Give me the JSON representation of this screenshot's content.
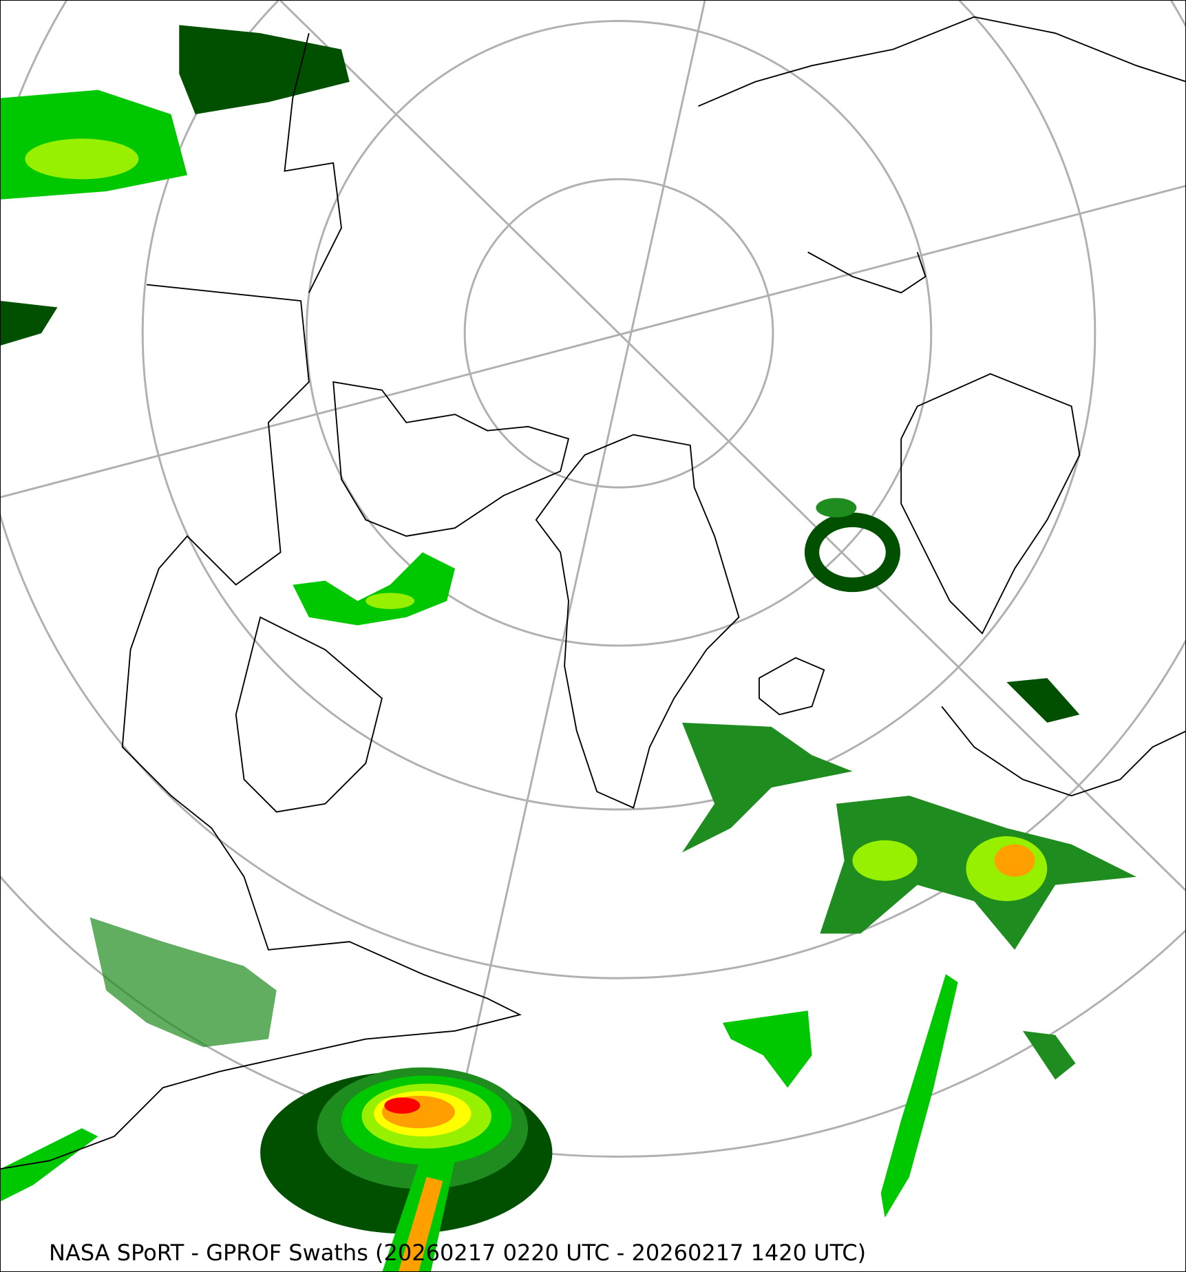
{
  "caption": "NASA SPoRT - GPROF Swaths (20260217 0220 UTC - 20260217 1420 UTC)",
  "map": {
    "projection": "north-polar-stereographic",
    "background_color": "#ffffff",
    "coastline_color": "#000000",
    "graticule_color": "#b0b0b0",
    "precip_colors": [
      "#005000",
      "#1e8c1e",
      "#00c800",
      "#96f000",
      "#ffff00",
      "#ffa000",
      "#ff0000"
    ]
  }
}
